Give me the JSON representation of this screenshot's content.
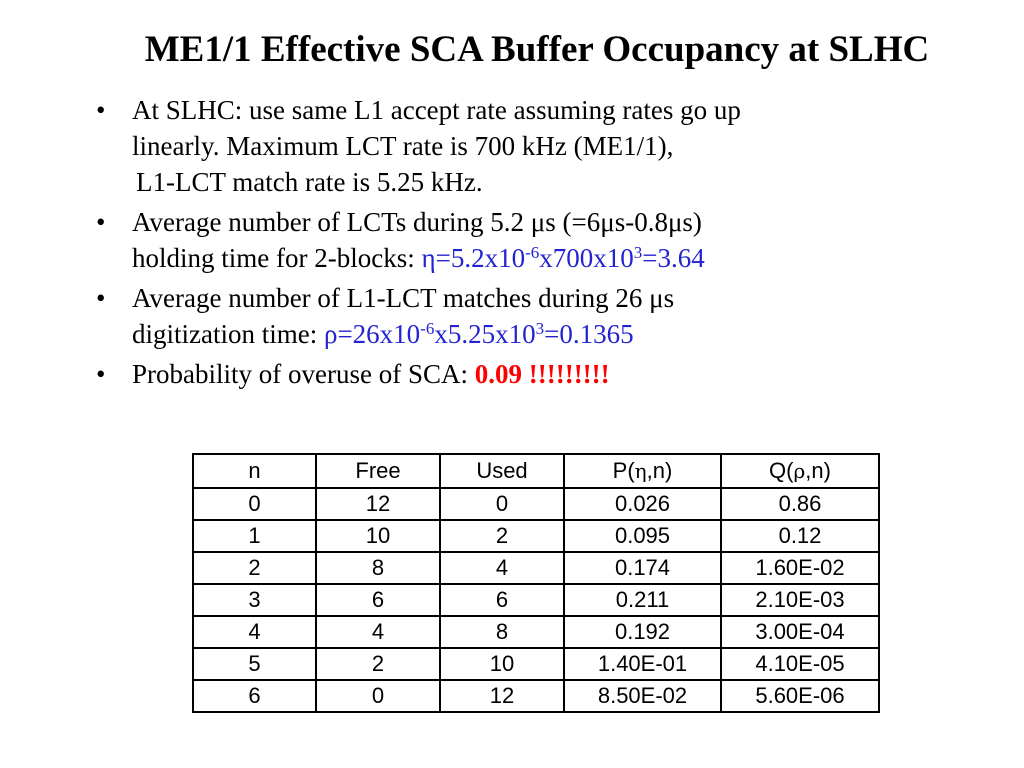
{
  "slide": {
    "title": "ME1/1 Effective SCA Buffer Occupancy at SLHC",
    "bullets": [
      {
        "line1": "At SLHC: use same L1 accept rate assuming rates go up",
        "line2": "linearly.  Maximum LCT rate is 700 kHz (ME1/1),",
        "line3": "L1-LCT match rate is 5.25 kHz."
      },
      {
        "line1": "Average number of LCTs during 5.2 μs (=6μs-0.8μs)",
        "line2_text": "holding time for 2-blocks:  ",
        "formula_a": "η=5.2x10",
        "exp_a": "-6",
        "formula_b": "x700x10",
        "exp_b": "3",
        "formula_c": "=3.64"
      },
      {
        "line1": "Average number of L1-LCT matches during 26 μs",
        "line2_text": "digitization time:  ",
        "formula_a": "ρ=26x10",
        "exp_a": "-6",
        "formula_b": "x5.25x10",
        "exp_b": "3",
        "formula_c": "=0.1365"
      },
      {
        "text": "Probability of overuse of SCA:  ",
        "highlight": "0.09 !!!!!!!!!"
      }
    ],
    "bullet_char": "•",
    "colors": {
      "formula": "#2323d2",
      "highlight": "#ff0000"
    }
  },
  "table": {
    "headers": {
      "n": "n",
      "free": "Free",
      "used": "Used",
      "p_prefix": "P(",
      "p_greek": "η",
      "p_suffix": ",n)",
      "q_prefix": "Q(",
      "q_greek": "ρ",
      "q_suffix": ",n)"
    },
    "rows": [
      [
        "0",
        "12",
        "0",
        "0.026",
        "0.86"
      ],
      [
        "1",
        "10",
        "2",
        "0.095",
        "0.12"
      ],
      [
        "2",
        "8",
        "4",
        "0.174",
        "1.60E-02"
      ],
      [
        "3",
        "6",
        "6",
        "0.211",
        "2.10E-03"
      ],
      [
        "4",
        "4",
        "8",
        "0.192",
        "3.00E-04"
      ],
      [
        "5",
        "2",
        "10",
        "1.40E-01",
        "4.10E-05"
      ],
      [
        "6",
        "0",
        "12",
        "8.50E-02",
        "5.60E-06"
      ]
    ]
  }
}
